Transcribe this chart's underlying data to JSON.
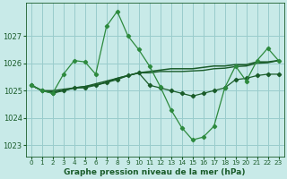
{
  "title": "Graphe pression niveau de la mer (hPa)",
  "background_color": "#c8eae8",
  "grid_color": "#99cccc",
  "line_color_dark": "#1a5c2a",
  "line_color_bright": "#2d8a3e",
  "xlabel_fontsize": 6.5,
  "tick_fontsize": 6.0,
  "xlim": [
    -0.5,
    23.5
  ],
  "ylim": [
    1022.6,
    1028.2
  ],
  "yticks": [
    1023,
    1024,
    1025,
    1026,
    1027
  ],
  "xticks": [
    0,
    1,
    2,
    3,
    4,
    5,
    6,
    7,
    8,
    9,
    10,
    11,
    12,
    13,
    14,
    15,
    16,
    17,
    18,
    19,
    20,
    21,
    22,
    23
  ],
  "series1_x": [
    0,
    1,
    2,
    3,
    4,
    5,
    6,
    7,
    8,
    9,
    10,
    11,
    12,
    13,
    14,
    15,
    16,
    17,
    18,
    19,
    20,
    21,
    22,
    23
  ],
  "series1_y": [
    1025.2,
    1025.0,
    1024.9,
    1025.6,
    1026.1,
    1026.05,
    1025.6,
    1027.35,
    1027.9,
    1027.0,
    1026.5,
    1025.9,
    1025.15,
    1024.3,
    1023.65,
    1023.2,
    1023.3,
    1023.7,
    1025.1,
    1025.9,
    1025.35,
    1026.1,
    1026.55,
    1026.1
  ],
  "series2_x": [
    0,
    1,
    2,
    3,
    4,
    5,
    6,
    7,
    8,
    9,
    10,
    11,
    12,
    13,
    14,
    15,
    16,
    17,
    18,
    19,
    20,
    21,
    22,
    23
  ],
  "series2_y": [
    1025.2,
    1025.0,
    1024.95,
    1025.0,
    1025.1,
    1025.15,
    1025.2,
    1025.3,
    1025.45,
    1025.55,
    1025.65,
    1025.7,
    1025.75,
    1025.8,
    1025.8,
    1025.8,
    1025.85,
    1025.9,
    1025.9,
    1025.95,
    1025.95,
    1026.05,
    1026.05,
    1026.1
  ],
  "series3_x": [
    0,
    1,
    2,
    3,
    4,
    5,
    6,
    7,
    8,
    9,
    10,
    11,
    12,
    13,
    14,
    15,
    16,
    17,
    18,
    19,
    20,
    21,
    22,
    23
  ],
  "series3_y": [
    1025.2,
    1025.0,
    1024.9,
    1025.0,
    1025.1,
    1025.1,
    1025.2,
    1025.3,
    1025.4,
    1025.55,
    1025.65,
    1025.2,
    1025.1,
    1025.0,
    1024.9,
    1024.8,
    1024.9,
    1025.0,
    1025.1,
    1025.4,
    1025.45,
    1025.55,
    1025.6,
    1025.6
  ],
  "series4_x": [
    0,
    1,
    2,
    3,
    4,
    5,
    6,
    7,
    8,
    9,
    10,
    11,
    12,
    13,
    14,
    15,
    16,
    17,
    18,
    19,
    20,
    21,
    22,
    23
  ],
  "series4_y": [
    1025.2,
    1025.0,
    1025.0,
    1025.05,
    1025.1,
    1025.15,
    1025.25,
    1025.35,
    1025.45,
    1025.55,
    1025.65,
    1025.65,
    1025.7,
    1025.7,
    1025.7,
    1025.72,
    1025.74,
    1025.8,
    1025.82,
    1025.88,
    1025.9,
    1026.0,
    1026.02,
    1026.1
  ]
}
